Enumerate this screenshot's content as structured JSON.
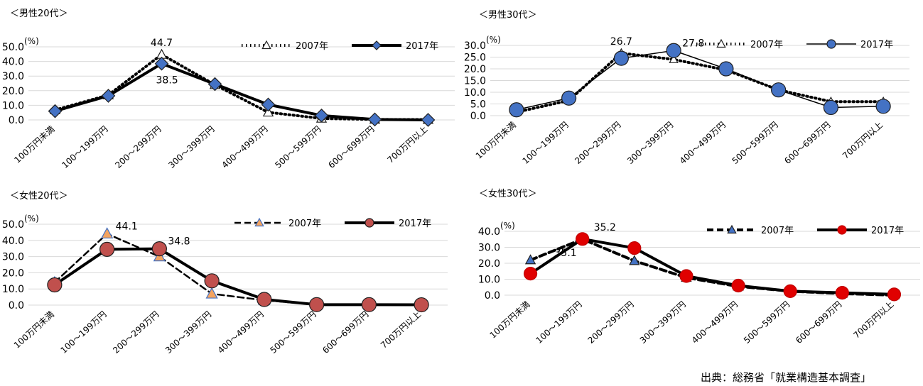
{
  "source_note": "出典：総務省「就業構造基本調査」",
  "chart_data": [
    {
      "type": "line",
      "caption": "＜男性20代＞",
      "unit": "(%)",
      "categories": [
        "100万円未満",
        "100～199万円",
        "200～299万円",
        "300～399万円",
        "400～499万円",
        "500～599万円",
        "600～699万円",
        "700万円以上"
      ],
      "ylim": [
        0,
        50
      ],
      "yticks": [
        "0.0",
        "10.0",
        "20.0",
        "30.0",
        "40.0",
        "50.0"
      ],
      "grid": true,
      "legend": "top-right",
      "series": [
        {
          "name": "2007年",
          "style": "dotted",
          "marker": "triangle",
          "color": "#000000",
          "marker_fill": "#ffffff",
          "values": [
            6.8,
            17.0,
            44.7,
            24.0,
            5.2,
            1.0,
            0.3,
            0.2
          ]
        },
        {
          "name": "2017年",
          "style": "solid",
          "marker": "diamond",
          "color": "#000000",
          "marker_fill": "#4472c4",
          "values": [
            6.0,
            16.5,
            38.5,
            24.5,
            10.5,
            3.0,
            0.3,
            0.0
          ]
        }
      ],
      "labels": [
        {
          "text": "44.7",
          "series": 0,
          "index": 2,
          "pos": "above"
        },
        {
          "text": "38.5",
          "series": 1,
          "index": 2,
          "pos": "below"
        }
      ]
    },
    {
      "type": "line",
      "caption": "＜男性30代＞",
      "unit": "(%)",
      "categories": [
        "100万円未満",
        "100～199万円",
        "200～299万円",
        "300～399万円",
        "400～499万円",
        "500～599万円",
        "600～699万円",
        "700万円以上"
      ],
      "ylim": [
        0,
        30
      ],
      "yticks": [
        "0.0",
        "5.0",
        "10.0",
        "15.0",
        "20.0",
        "25.0",
        "30.0"
      ],
      "grid": true,
      "legend": "top-right",
      "series": [
        {
          "name": "2007年",
          "style": "dotted",
          "marker": "triangle",
          "color": "#000000",
          "marker_fill": "#ffffff",
          "values": [
            1.5,
            6.5,
            26.7,
            24.0,
            19.5,
            11.0,
            6.0,
            6.0
          ]
        },
        {
          "name": "2017年",
          "style": "solid",
          "marker": "circle",
          "color": "#000000",
          "marker_fill": "#4472c4",
          "values": [
            2.5,
            7.5,
            24.5,
            27.8,
            20.0,
            11.0,
            3.5,
            4.0
          ]
        }
      ],
      "labels": [
        {
          "text": "26.7",
          "series": 0,
          "index": 2,
          "pos": "above"
        },
        {
          "text": "27.8",
          "series": 1,
          "index": 3,
          "pos": "right"
        }
      ]
    },
    {
      "type": "line",
      "caption": "＜女性20代＞",
      "unit": "(%)",
      "categories": [
        "100万円未満",
        "100～199万円",
        "200～299万円",
        "300～399万円",
        "400～499万円",
        "500～599万円",
        "600～699万円",
        "700万円以上"
      ],
      "ylim": [
        0,
        50
      ],
      "yticks": [
        "0.0",
        "10.0",
        "20.0",
        "30.0",
        "40.0",
        "50.0"
      ],
      "grid": true,
      "legend": "top-right",
      "series": [
        {
          "name": "2007年",
          "style": "dashed",
          "marker": "triangle",
          "color": "#000000",
          "marker_fill": "#f4a460",
          "marker_stroke": "#4472c4",
          "values": [
            14.0,
            44.1,
            30.0,
            7.0,
            3.0,
            0.3,
            0.1,
            0.1
          ]
        },
        {
          "name": "2017年",
          "style": "solid",
          "marker": "circle",
          "color": "#000000",
          "marker_fill": "#c0504d",
          "values": [
            12.5,
            34.5,
            34.8,
            15.0,
            3.5,
            0.3,
            0.3,
            0.2
          ]
        }
      ],
      "labels": [
        {
          "text": "44.1",
          "series": 0,
          "index": 1,
          "pos": "right"
        },
        {
          "text": "34.8",
          "series": 1,
          "index": 2,
          "pos": "right"
        }
      ]
    },
    {
      "type": "line",
      "caption": "＜女性30代＞",
      "unit": "(%)",
      "categories": [
        "100万円未満",
        "100～199万円",
        "200～299万円",
        "300～399万円",
        "400～499万円",
        "500～599万円",
        "600～699万円",
        "700万円以上"
      ],
      "ylim": [
        0,
        40
      ],
      "yticks": [
        "0.0",
        "10.0",
        "20.0",
        "30.0",
        "40.0"
      ],
      "grid": true,
      "legend": "top-right",
      "series": [
        {
          "name": "2007年",
          "style": "dashed",
          "marker": "triangle",
          "color": "#000000",
          "marker_fill": "#4472c4",
          "values": [
            22.0,
            35.1,
            21.5,
            11.0,
            5.5,
            2.5,
            1.0,
            0.0
          ]
        },
        {
          "name": "2017年",
          "style": "solid",
          "marker": "circle",
          "color": "#000000",
          "marker_fill": "#e00000",
          "marker_stroke": "#c00000",
          "values": [
            13.5,
            35.2,
            29.5,
            12.0,
            6.0,
            2.5,
            1.5,
            0.5
          ]
        }
      ],
      "labels": [
        {
          "text": "35.2",
          "series": 1,
          "index": 1,
          "pos": "right-up"
        },
        {
          "text": "35.1",
          "series": 0,
          "index": 1,
          "pos": "left-down"
        }
      ]
    }
  ]
}
